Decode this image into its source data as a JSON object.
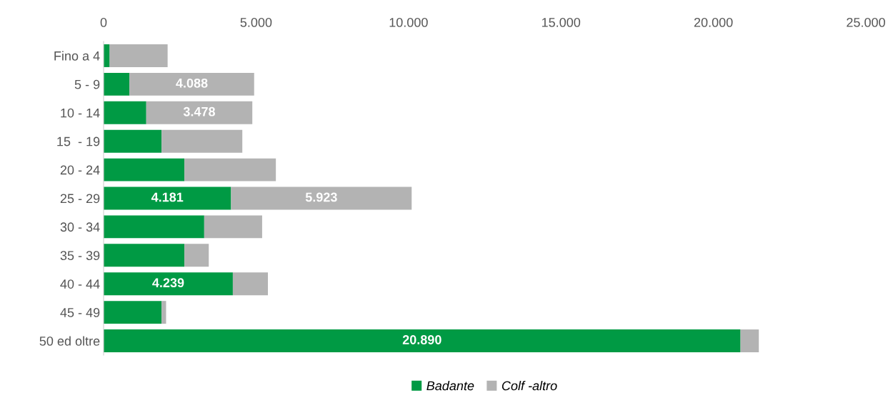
{
  "chart_data": {
    "type": "bar",
    "orientation": "horizontal",
    "stacked": true,
    "categories": [
      "Fino a 4",
      "5 - 9",
      "10 - 14",
      "15  - 19",
      "20 - 24",
      "25 - 29",
      "30 - 34",
      "35 - 39",
      "40 - 44",
      "45 - 49",
      "50 ed oltre"
    ],
    "series": [
      {
        "name": "Badante",
        "color": "#009a44",
        "values": [
          200,
          850,
          1400,
          1900,
          2650,
          4181,
          3300,
          2650,
          4239,
          1900,
          20890
        ],
        "value_labels": [
          null,
          null,
          null,
          null,
          null,
          "4.181",
          null,
          null,
          "4.239",
          null,
          "20.890"
        ]
      },
      {
        "name": "Colf -altro",
        "color": "#b3b3b3",
        "values": [
          1900,
          4088,
          3478,
          2650,
          3000,
          5923,
          1900,
          800,
          1150,
          150,
          600
        ],
        "value_labels": [
          null,
          "4.088",
          "3.478",
          null,
          null,
          "5.923",
          null,
          null,
          null,
          null,
          null
        ]
      }
    ],
    "xlim": [
      0,
      25000
    ],
    "xticks": [
      {
        "value": 0,
        "label": "0"
      },
      {
        "value": 5000,
        "label": "5.000"
      },
      {
        "value": 10000,
        "label": "10.000"
      },
      {
        "value": 15000,
        "label": "15.000"
      },
      {
        "value": 20000,
        "label": "20.000"
      },
      {
        "value": 25000,
        "label": "25.000"
      }
    ],
    "grid": false,
    "legend": "bottom"
  }
}
